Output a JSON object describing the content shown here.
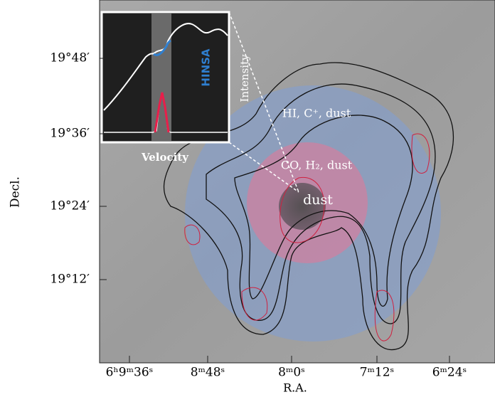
{
  "axes": {
    "x_label": "R.A.",
    "y_label": "Decl.",
    "x_ticks": [
      "6ʰ9ᵐ36ˢ",
      "8ᵐ48ˢ",
      "8ᵐ0ˢ",
      "7ᵐ12ˢ",
      "6ᵐ24ˢ"
    ],
    "y_ticks": [
      "19°48′",
      "19°36′",
      "19°24′",
      "19°12′"
    ]
  },
  "inset": {
    "x_label": "Velocity",
    "y_label": "Intensity",
    "annotation": "HINSA"
  },
  "annotations": [
    "HI, C⁺, dust",
    "CO, H₂, dust",
    "dust"
  ]
}
